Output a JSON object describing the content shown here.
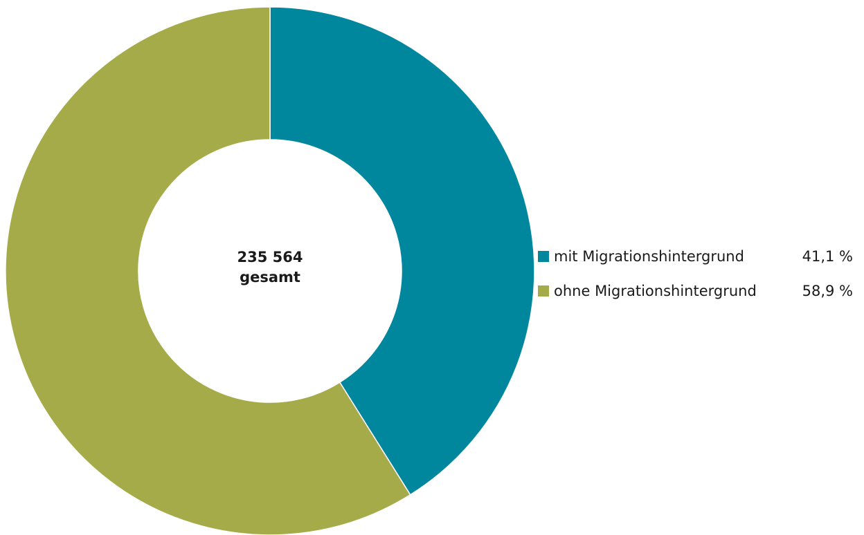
{
  "chart_data": {
    "type": "pie",
    "variant": "donut",
    "title": "",
    "center_label": {
      "total": "235 564",
      "caption": "gesamt"
    },
    "slices": [
      {
        "label": "mit Migrationshintergrund",
        "value": 41.1,
        "value_label": "41,1 %",
        "color": "#00879E"
      },
      {
        "label": "ohne Migrationshintergrund",
        "value": 58.9,
        "value_label": "58,9 %",
        "color": "#A5AB48"
      }
    ],
    "legend_placement": "right"
  }
}
